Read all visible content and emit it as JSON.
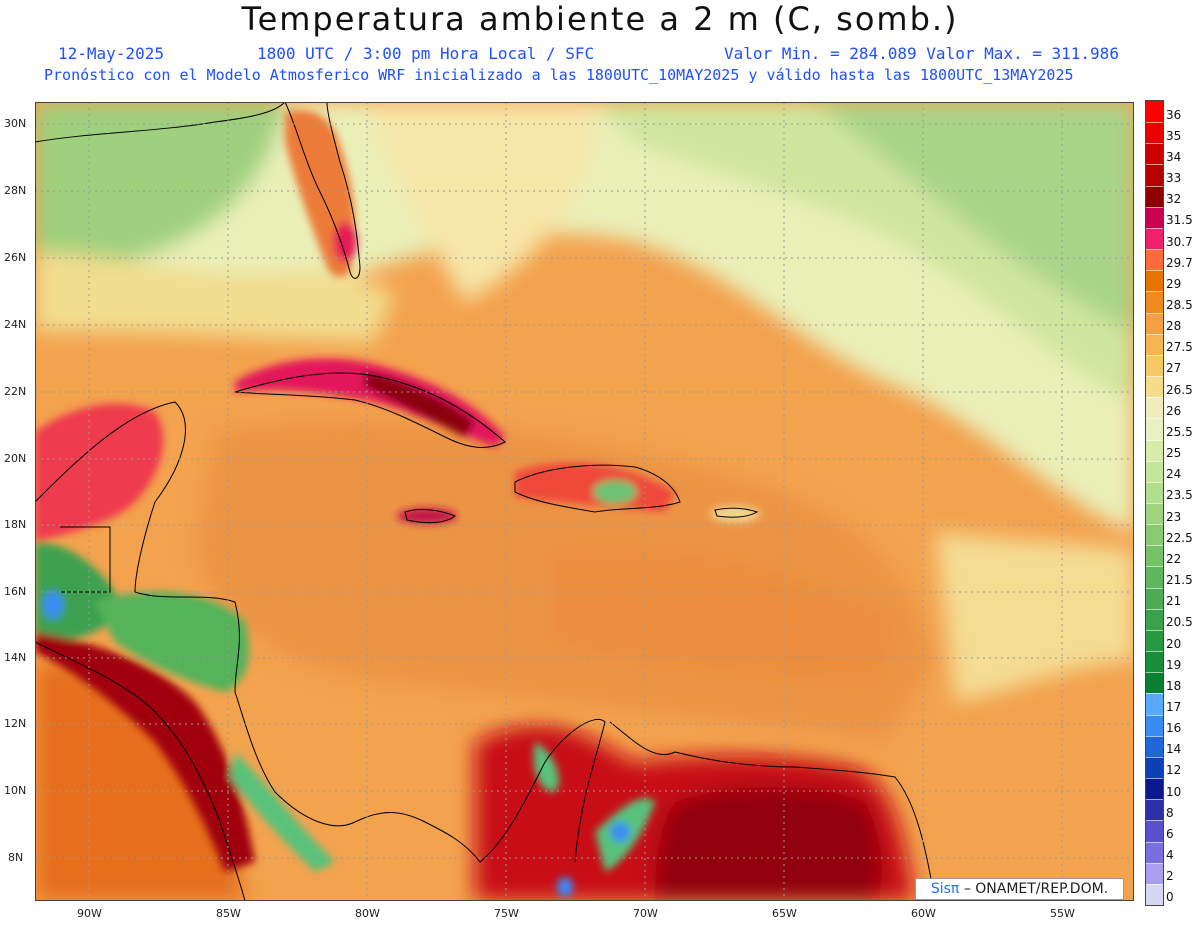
{
  "title": "Temperatura ambiente a 2 m (C, somb.)",
  "subtitle": {
    "date": "12-May-2025",
    "time": "1800 UTC / 3:00 pm Hora Local / SFC",
    "minmax": "Valor Min. = 284.089  Valor Max. = 311.986",
    "model": "Pronóstico con el Modelo Atmosferico WRF inicializado a las 1800UTC_10MAY2025 y válido hasta las  1800UTC_13MAY2025"
  },
  "lat_labels": [
    "30N",
    "28N",
    "26N",
    "24N",
    "22N",
    "20N",
    "18N",
    "16N",
    "14N",
    "12N",
    "10N",
    "8N"
  ],
  "lon_labels": [
    "90W",
    "85W",
    "80W",
    "75W",
    "70W",
    "65W",
    "60W",
    "55W"
  ],
  "colorbar": {
    "labels": [
      "36",
      "35",
      "34",
      "33",
      "32",
      "31.5",
      "30.7",
      "29.7",
      "29",
      "28.5",
      "28",
      "27.5",
      "27",
      "26.5",
      "26",
      "25.5",
      "25",
      "24",
      "23.5",
      "23",
      "22.5",
      "22",
      "21.5",
      "21",
      "20.5",
      "20",
      "19",
      "18",
      "17",
      "16",
      "14",
      "12",
      "10",
      "8",
      "6",
      "4",
      "2",
      "0"
    ],
    "colors": [
      "#ff0000",
      "#e60000",
      "#cc0000",
      "#b30000",
      "#8c0000",
      "#c8004f",
      "#f0206a",
      "#ff6a3d",
      "#e87400",
      "#ef8a1f",
      "#f3a043",
      "#f6b552",
      "#f7c764",
      "#f4dc8a",
      "#f0ecc0",
      "#eaf0c4",
      "#d7eca8",
      "#c4e69a",
      "#b1de8c",
      "#9ed47e",
      "#8acb72",
      "#76c267",
      "#60b65d",
      "#4dab54",
      "#3aa04b",
      "#289742",
      "#168d39",
      "#088030",
      "#59a9ff",
      "#3a8cf5",
      "#1f66d9",
      "#0d3fb5",
      "#0a1a8c",
      "#2e2ea8",
      "#5a4fcc",
      "#7b6ee0",
      "#a99ef0",
      "#d6d6f5"
    ]
  },
  "credit": {
    "sis": "Sisπ",
    "org": "– ONAMET/REP.DOM."
  },
  "legend_colors": {
    "coast": "#000000",
    "ocean_warm": "#f2a24e",
    "ocean_mid": "#f7d37c",
    "land_hot": "#8c0000"
  }
}
